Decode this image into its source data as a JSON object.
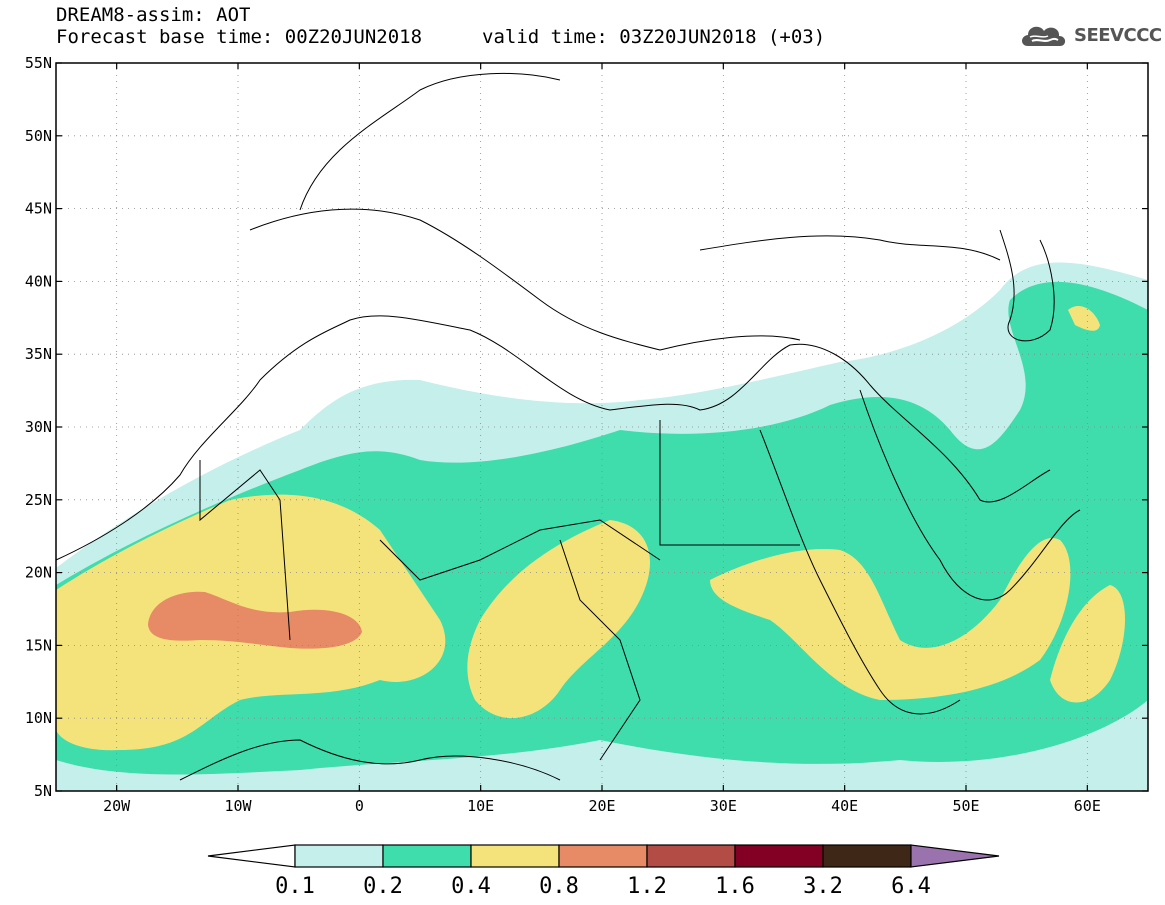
{
  "header": {
    "model_title": "DREAM8-assim: AOT",
    "base_time": "Forecast base time: 00Z20JUN2018",
    "valid_time": "valid time: 03Z20JUN2018 (+03)"
  },
  "logo": {
    "text": "SEEVCCC",
    "icon": "cloud-icon"
  },
  "map": {
    "lon_range": [
      -25,
      65
    ],
    "lat_range": [
      5,
      55
    ],
    "lat_ticks": [
      {
        "value": 55,
        "label": "55N"
      },
      {
        "value": 50,
        "label": "50N"
      },
      {
        "value": 45,
        "label": "45N"
      },
      {
        "value": 40,
        "label": "40N"
      },
      {
        "value": 35,
        "label": "35N"
      },
      {
        "value": 30,
        "label": "30N"
      },
      {
        "value": 25,
        "label": "25N"
      },
      {
        "value": 20,
        "label": "20N"
      },
      {
        "value": 15,
        "label": "15N"
      },
      {
        "value": 10,
        "label": "10N"
      },
      {
        "value": 5,
        "label": "5N"
      }
    ],
    "lon_ticks": [
      {
        "value": -20,
        "label": "20W"
      },
      {
        "value": -10,
        "label": "10W"
      },
      {
        "value": 0,
        "label": "0"
      },
      {
        "value": 10,
        "label": "10E"
      },
      {
        "value": 20,
        "label": "20E"
      },
      {
        "value": 30,
        "label": "30E"
      },
      {
        "value": 40,
        "label": "40E"
      },
      {
        "value": 50,
        "label": "50E"
      },
      {
        "value": 60,
        "label": "60E"
      }
    ],
    "grid": "dotted"
  },
  "colorbar": {
    "levels": [
      "0.1",
      "0.2",
      "0.4",
      "0.8",
      "1.2",
      "1.6",
      "3.2",
      "6.4"
    ],
    "colors": [
      "#ffffff",
      "#c4efea",
      "#3fdcac",
      "#f4e37a",
      "#e78a66",
      "#b24c45",
      "#830024",
      "#3e2717",
      "#9a72ae"
    ]
  }
}
